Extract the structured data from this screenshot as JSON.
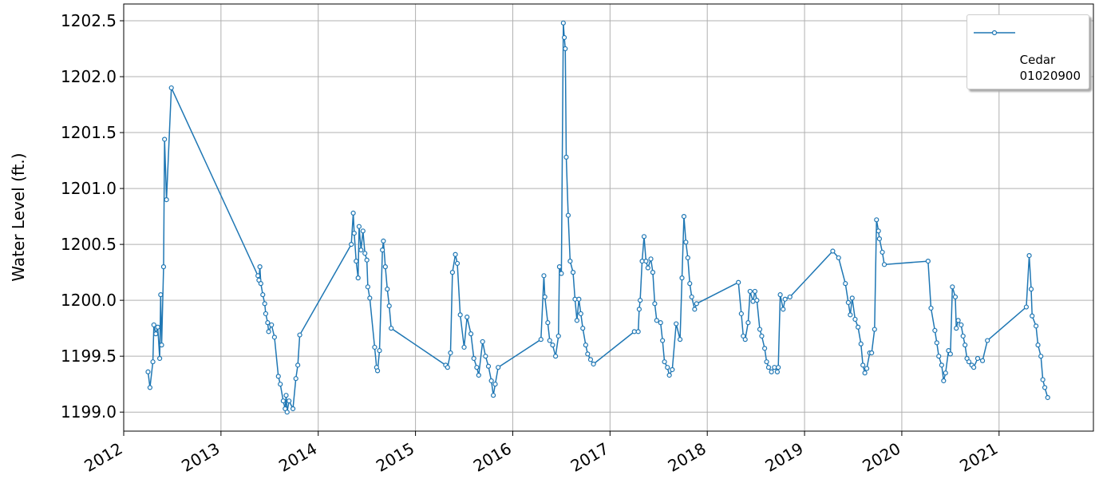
{
  "chart_data": {
    "type": "line",
    "ylabel": "Water Level (ft.)",
    "xlim": [
      2012,
      2021.97
    ],
    "xticks": [
      2012,
      2013,
      2014,
      2015,
      2016,
      2017,
      2018,
      2019,
      2020,
      2021
    ],
    "ylim": [
      1198.83,
      1202.65
    ],
    "yticks": [
      {
        "value": 1199,
        "label": "1199.0"
      },
      1199.5,
      {
        "value": 1200,
        "label": "1200.0"
      },
      1200.5,
      {
        "value": 1201,
        "label": "1201.0"
      },
      1201.5,
      {
        "value": 1202,
        "label": "1202.0"
      },
      1202.5
    ],
    "grid": true,
    "legend": "upper right",
    "series": [
      {
        "name": "Cedar\n01020900",
        "color": "#1f77b4",
        "x": [
          2012.25,
          2012.27,
          2012.3,
          2012.31,
          2012.33,
          2012.35,
          2012.37,
          2012.38,
          2012.39,
          2012.41,
          2012.42,
          2012.44,
          2012.49,
          2013.38,
          2013.39,
          2013.4,
          2013.41,
          2013.43,
          2013.45,
          2013.46,
          2013.48,
          2013.49,
          2013.52,
          2013.55,
          2013.59,
          2013.61,
          2013.64,
          2013.66,
          2013.67,
          2013.68,
          2013.7,
          2013.74,
          2013.77,
          2013.79,
          2013.81,
          2014.34,
          2014.36,
          2014.37,
          2014.39,
          2014.41,
          2014.42,
          2014.44,
          2014.46,
          2014.48,
          2014.5,
          2014.51,
          2014.53,
          2014.58,
          2014.6,
          2014.61,
          2014.63,
          2014.66,
          2014.67,
          2014.69,
          2014.71,
          2014.73,
          2014.75,
          2015.31,
          2015.33,
          2015.36,
          2015.38,
          2015.41,
          2015.43,
          2015.46,
          2015.5,
          2015.53,
          2015.57,
          2015.6,
          2015.63,
          2015.65,
          2015.69,
          2015.72,
          2015.75,
          2015.78,
          2015.8,
          2015.82,
          2015.85,
          2016.29,
          2016.32,
          2016.33,
          2016.36,
          2016.38,
          2016.41,
          2016.44,
          2016.47,
          2016.48,
          2016.5,
          2016.52,
          2016.53,
          2016.54,
          2016.55,
          2016.57,
          2016.59,
          2016.62,
          2016.64,
          2016.66,
          2016.68,
          2016.7,
          2016.72,
          2016.75,
          2016.77,
          2016.8,
          2016.83,
          2017.25,
          2017.29,
          2017.3,
          2017.31,
          2017.33,
          2017.35,
          2017.37,
          2017.39,
          2017.42,
          2017.44,
          2017.46,
          2017.48,
          2017.52,
          2017.54,
          2017.56,
          2017.59,
          2017.61,
          2017.64,
          2017.68,
          2017.72,
          2017.74,
          2017.76,
          2017.78,
          2017.8,
          2017.82,
          2017.84,
          2017.87,
          2017.89,
          2018.32,
          2018.35,
          2018.37,
          2018.39,
          2018.42,
          2018.44,
          2018.47,
          2018.49,
          2018.51,
          2018.54,
          2018.56,
          2018.59,
          2018.61,
          2018.63,
          2018.66,
          2018.69,
          2018.72,
          2018.73,
          2018.75,
          2018.78,
          2018.8,
          2018.85,
          2019.29,
          2019.35,
          2019.42,
          2019.45,
          2019.47,
          2019.49,
          2019.52,
          2019.55,
          2019.58,
          2019.6,
          2019.62,
          2019.64,
          2019.67,
          2019.69,
          2019.72,
          2019.74,
          2019.76,
          2019.77,
          2019.8,
          2019.82,
          2020.27,
          2020.3,
          2020.34,
          2020.36,
          2020.38,
          2020.41,
          2020.43,
          2020.45,
          2020.48,
          2020.5,
          2020.52,
          2020.55,
          2020.56,
          2020.58,
          2020.61,
          2020.63,
          2020.65,
          2020.67,
          2020.69,
          2020.72,
          2020.74,
          2020.78,
          2020.83,
          2020.88,
          2021.28,
          2021.31,
          2021.33,
          2021.34,
          2021.38,
          2021.4,
          2021.43,
          2021.45,
          2021.47,
          2021.5
        ],
        "values": [
          1199.36,
          1199.22,
          1199.45,
          1199.78,
          1199.7,
          1199.76,
          1199.48,
          1200.05,
          1199.6,
          1200.3,
          1201.44,
          1200.9,
          1201.9,
          1200.22,
          1200.18,
          1200.3,
          1200.15,
          1200.05,
          1199.97,
          1199.88,
          1199.8,
          1199.72,
          1199.78,
          1199.67,
          1199.32,
          1199.25,
          1199.1,
          1199.03,
          1199.15,
          1199.0,
          1199.1,
          1199.03,
          1199.3,
          1199.42,
          1199.69,
          1200.5,
          1200.78,
          1200.6,
          1200.35,
          1200.2,
          1200.66,
          1200.45,
          1200.62,
          1200.42,
          1200.36,
          1200.12,
          1200.02,
          1199.58,
          1199.4,
          1199.37,
          1199.55,
          1200.45,
          1200.53,
          1200.3,
          1200.1,
          1199.95,
          1199.75,
          1199.42,
          1199.4,
          1199.53,
          1200.25,
          1200.41,
          1200.33,
          1199.87,
          1199.58,
          1199.85,
          1199.7,
          1199.48,
          1199.4,
          1199.33,
          1199.63,
          1199.5,
          1199.41,
          1199.28,
          1199.15,
          1199.25,
          1199.4,
          1199.65,
          1200.22,
          1200.03,
          1199.8,
          1199.64,
          1199.6,
          1199.5,
          1199.68,
          1200.3,
          1200.24,
          1202.48,
          1202.35,
          1202.25,
          1201.28,
          1200.76,
          1200.35,
          1200.25,
          1200.01,
          1199.82,
          1200.01,
          1199.88,
          1199.75,
          1199.6,
          1199.52,
          1199.47,
          1199.43,
          1199.72,
          1199.72,
          1199.92,
          1200.0,
          1200.35,
          1200.57,
          1200.35,
          1200.29,
          1200.37,
          1200.25,
          1199.97,
          1199.82,
          1199.8,
          1199.64,
          1199.45,
          1199.4,
          1199.33,
          1199.38,
          1199.79,
          1199.65,
          1200.2,
          1200.75,
          1200.52,
          1200.38,
          1200.15,
          1200.03,
          1199.92,
          1199.97,
          1200.16,
          1199.88,
          1199.68,
          1199.65,
          1199.8,
          1200.08,
          1199.99,
          1200.08,
          1200.0,
          1199.74,
          1199.68,
          1199.57,
          1199.45,
          1199.4,
          1199.36,
          1199.4,
          1199.36,
          1199.4,
          1200.05,
          1199.92,
          1200.01,
          1200.03,
          1200.44,
          1200.38,
          1200.15,
          1199.98,
          1199.87,
          1200.02,
          1199.83,
          1199.76,
          1199.61,
          1199.42,
          1199.35,
          1199.39,
          1199.53,
          1199.53,
          1199.74,
          1200.72,
          1200.62,
          1200.55,
          1200.43,
          1200.32,
          1200.35,
          1199.93,
          1199.73,
          1199.62,
          1199.5,
          1199.42,
          1199.28,
          1199.35,
          1199.55,
          1199.52,
          1200.12,
          1200.03,
          1199.75,
          1199.82,
          1199.78,
          1199.68,
          1199.6,
          1199.48,
          1199.45,
          1199.42,
          1199.4,
          1199.48,
          1199.46,
          1199.64,
          1199.94,
          1200.4,
          1200.1,
          1199.86,
          1199.77,
          1199.6,
          1199.5,
          1199.29,
          1199.22,
          1199.13
        ]
      }
    ]
  }
}
